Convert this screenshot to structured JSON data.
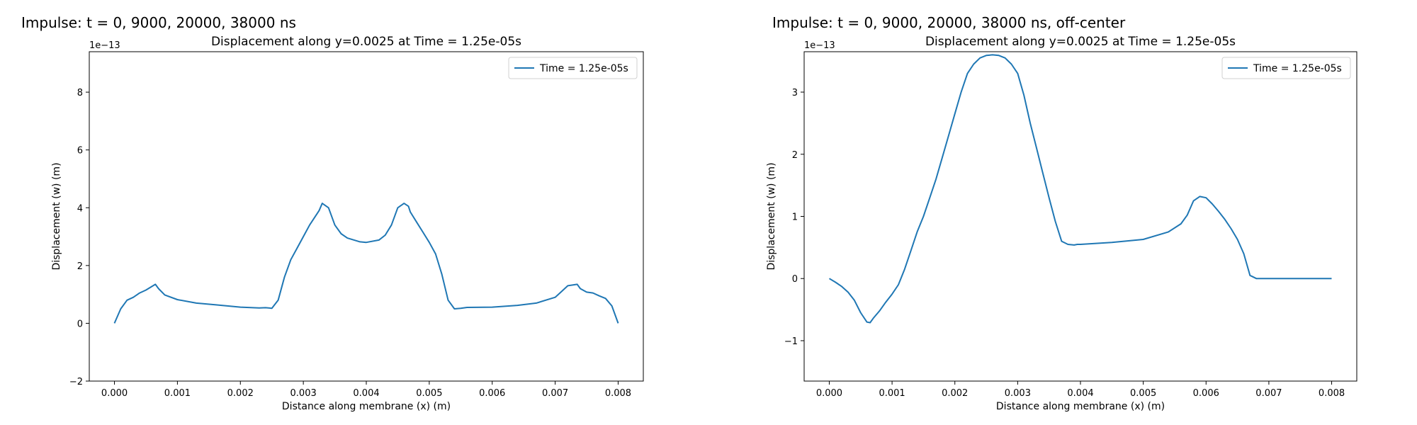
{
  "figure": {
    "titles": [
      "Impulse: t = 0, 9000, 20000, 38000 ns",
      "Impulse: t = 0, 9000, 20000, 38000 ns, off-center"
    ]
  },
  "chart_data": [
    {
      "type": "line",
      "title": "Displacement along y=0.0025 at Time = 1.25e-05s",
      "xlabel": "Distance along membrane (x) (m)",
      "ylabel": "Displacement (w) (m)",
      "offset_label": "1e−13",
      "xlim": [
        -0.0004,
        0.0084
      ],
      "ylim": [
        -2.0,
        9.4
      ],
      "xticks": [
        0.0,
        0.001,
        0.002,
        0.003,
        0.004,
        0.005,
        0.006,
        0.007,
        0.008
      ],
      "xtick_labels": [
        "0.000",
        "0.001",
        "0.002",
        "0.003",
        "0.004",
        "0.005",
        "0.006",
        "0.007",
        "0.008"
      ],
      "yticks": [
        -2,
        0,
        2,
        4,
        6,
        8
      ],
      "ytick_labels": [
        "−2",
        "0",
        "2",
        "4",
        "6",
        "8"
      ],
      "grid": false,
      "legend": "top-right",
      "series": [
        {
          "name": "Time = 1.25e-05s",
          "color": "#1f77b4",
          "x": [
            0.0,
            0.0001,
            0.0002,
            0.0003,
            0.0004,
            0.0005,
            0.00065,
            0.0007,
            0.0008,
            0.001,
            0.0013,
            0.0016,
            0.002,
            0.0023,
            0.0024,
            0.0025,
            0.0026,
            0.0027,
            0.0028,
            0.0029,
            0.003,
            0.0031,
            0.00325,
            0.0033,
            0.0034,
            0.0035,
            0.0036,
            0.0037,
            0.0039,
            0.004,
            0.0042,
            0.0043,
            0.0044,
            0.0045,
            0.0046,
            0.00467,
            0.0047,
            0.0048,
            0.0049,
            0.005,
            0.0051,
            0.0052,
            0.0053,
            0.0054,
            0.0055,
            0.0056,
            0.006,
            0.0064,
            0.0067,
            0.007,
            0.0071,
            0.0072,
            0.00735,
            0.0074,
            0.0075,
            0.0076,
            0.0077,
            0.0078,
            0.0079,
            0.008
          ],
          "values": [
            0.0,
            0.5,
            0.8,
            0.9,
            1.05,
            1.15,
            1.35,
            1.2,
            0.98,
            0.82,
            0.7,
            0.64,
            0.56,
            0.53,
            0.54,
            0.52,
            0.8,
            1.6,
            2.2,
            2.6,
            3.0,
            3.4,
            3.9,
            4.15,
            4.0,
            3.4,
            3.1,
            2.95,
            2.82,
            2.8,
            2.88,
            3.05,
            3.4,
            4.0,
            4.15,
            4.05,
            3.85,
            3.5,
            3.15,
            2.8,
            2.4,
            1.7,
            0.8,
            0.5,
            0.52,
            0.55,
            0.56,
            0.62,
            0.7,
            0.9,
            1.1,
            1.3,
            1.35,
            1.2,
            1.08,
            1.05,
            0.95,
            0.86,
            0.6,
            0.0
          ]
        }
      ]
    },
    {
      "type": "line",
      "title": "Displacement along y=0.0025 at Time = 1.25e-05s",
      "xlabel": "Distance along membrane (x) (m)",
      "ylabel": "Displacement (w) (m)",
      "offset_label": "1e−13",
      "xlim": [
        -0.0004,
        0.0084
      ],
      "ylim": [
        -1.65,
        3.65
      ],
      "xticks": [
        0.0,
        0.001,
        0.002,
        0.003,
        0.004,
        0.005,
        0.006,
        0.007,
        0.008
      ],
      "xtick_labels": [
        "0.000",
        "0.001",
        "0.002",
        "0.003",
        "0.004",
        "0.005",
        "0.006",
        "0.007",
        "0.008"
      ],
      "yticks": [
        -1,
        0,
        1,
        2,
        3
      ],
      "ytick_labels": [
        "−1",
        "0",
        "1",
        "2",
        "3"
      ],
      "grid": false,
      "legend": "top-right",
      "series": [
        {
          "name": "Time = 1.25e-05s",
          "color": "#1f77b4",
          "x": [
            0.0,
            0.0001,
            0.0002,
            0.0003,
            0.0004,
            0.0005,
            0.0006,
            0.00065,
            0.0007,
            0.0008,
            0.0009,
            0.001,
            0.0011,
            0.0012,
            0.0013,
            0.0014,
            0.0015,
            0.0016,
            0.0017,
            0.0018,
            0.0019,
            0.002,
            0.0021,
            0.0022,
            0.0023,
            0.0024,
            0.0025,
            0.0026,
            0.0027,
            0.0028,
            0.0029,
            0.003,
            0.0031,
            0.0032,
            0.0033,
            0.0034,
            0.0035,
            0.0036,
            0.0037,
            0.0038,
            0.0039,
            0.00395,
            0.004,
            0.0045,
            0.005,
            0.0054,
            0.0056,
            0.0057,
            0.0058,
            0.0059,
            0.006,
            0.0061,
            0.0062,
            0.0063,
            0.0064,
            0.0065,
            0.0066,
            0.0067,
            0.0068,
            0.007,
            0.0075,
            0.008
          ],
          "values": [
            0.0,
            -0.06,
            -0.13,
            -0.22,
            -0.35,
            -0.55,
            -0.7,
            -0.71,
            -0.64,
            -0.52,
            -0.38,
            -0.25,
            -0.1,
            0.15,
            0.45,
            0.75,
            1.0,
            1.3,
            1.6,
            1.95,
            2.3,
            2.65,
            3.0,
            3.3,
            3.45,
            3.55,
            3.59,
            3.6,
            3.59,
            3.55,
            3.45,
            3.3,
            2.95,
            2.5,
            2.1,
            1.7,
            1.3,
            0.92,
            0.6,
            0.55,
            0.54,
            0.55,
            0.55,
            0.58,
            0.63,
            0.75,
            0.88,
            1.02,
            1.25,
            1.32,
            1.3,
            1.2,
            1.08,
            0.95,
            0.8,
            0.63,
            0.4,
            0.05,
            0.0,
            0.0,
            0.0,
            0.0
          ]
        }
      ]
    }
  ]
}
